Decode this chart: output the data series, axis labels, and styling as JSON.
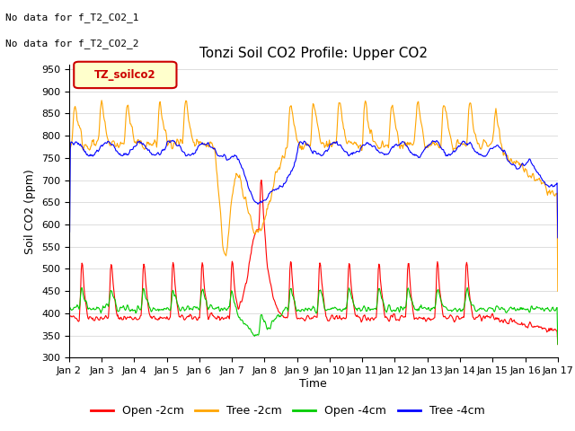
{
  "title": "Tonzi Soil CO2 Profile: Upper CO2",
  "ylabel": "Soil CO2 (ppm)",
  "xlabel": "Time",
  "ylim": [
    300,
    960
  ],
  "yticks": [
    300,
    350,
    400,
    450,
    500,
    550,
    600,
    650,
    700,
    750,
    800,
    850,
    900,
    950
  ],
  "no_data_text": [
    "No data for f_T2_CO2_1",
    "No data for f_T2_CO2_2"
  ],
  "legend_label": "TZ_soilco2",
  "legend_entries": [
    "Open -2cm",
    "Tree -2cm",
    "Open -4cm",
    "Tree -4cm"
  ],
  "legend_colors": [
    "#ff0000",
    "#ffa500",
    "#00cc00",
    "#0000ff"
  ],
  "line_colors": {
    "open_2cm": "#ff0000",
    "tree_2cm": "#ffa500",
    "open_4cm": "#00cc00",
    "tree_4cm": "#0000ff"
  },
  "background_color": "#ffffff",
  "grid_color": "#d0d0d0",
  "title_fontsize": 11,
  "axis_fontsize": 9,
  "tick_fontsize": 8
}
